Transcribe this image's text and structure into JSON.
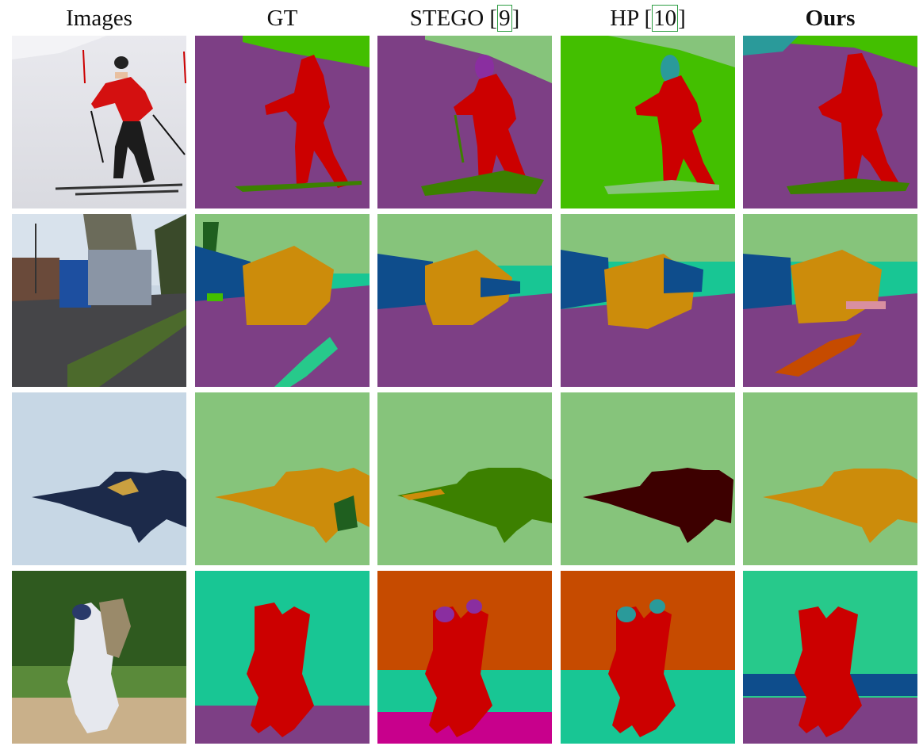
{
  "columns": [
    {
      "id": "images",
      "label": "Images"
    },
    {
      "id": "gt",
      "label": "GT"
    },
    {
      "id": "stego",
      "label": "STEGO ",
      "ref": "9",
      "close": "]"
    },
    {
      "id": "hp",
      "label": "HP ",
      "ref": "10",
      "close": "]"
    },
    {
      "id": "ours",
      "label": "Ours"
    }
  ],
  "colors": {
    "purple": "#7d3f85",
    "red": "#cc0000",
    "green_bright": "#43bf00",
    "sage": "#86c47b",
    "teal": "#18c694",
    "mint": "#27c98b",
    "blue": "#0e4d8c",
    "ochre": "#cc8c0b",
    "olive": "#3c8000",
    "maroon": "#3d0000",
    "orange_red": "#c64b00",
    "magenta": "#c8008c",
    "cyan": "#2a9a9a",
    "dark_green": "#1f5f1f"
  },
  "rows": [
    {
      "id": "skier",
      "scene": "skier on snow slope"
    },
    {
      "id": "truck",
      "scene": "truck on road"
    },
    {
      "id": "jets",
      "scene": "fighter jets in sky"
    },
    {
      "id": "baseball",
      "scene": "baseball players on field"
    }
  ]
}
